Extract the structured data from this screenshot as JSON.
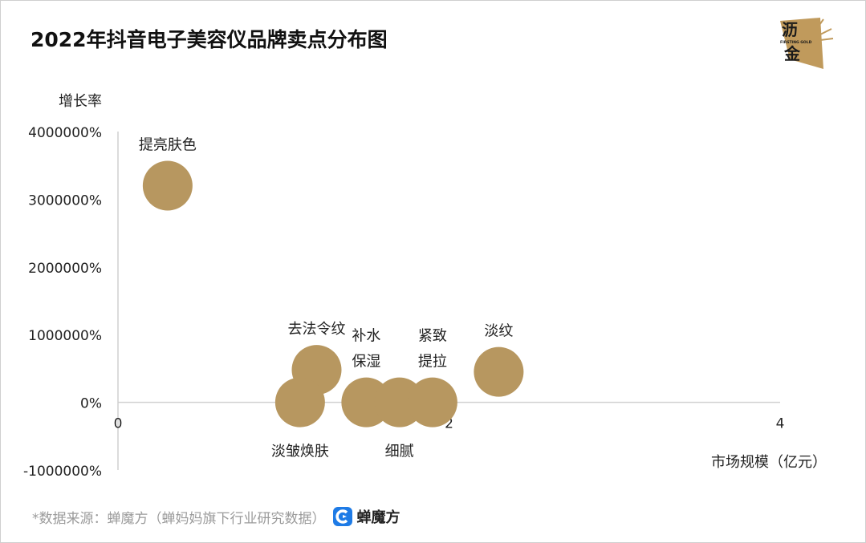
{
  "title": "2022年抖音电子美容仪品牌卖点分布图",
  "logo": {
    "line1": "沥",
    "tagline": "FIRSTING GOLD",
    "line2": "金",
    "color": "#c09a5c"
  },
  "source": {
    "text": "*数据来源：蝉魔方（蝉妈妈旗下行业研究数据）",
    "brand": "蝉魔方",
    "brand_color": "#1e7be6"
  },
  "chart_data": {
    "type": "scatter",
    "subtype": "bubble",
    "xlabel": "市场规模（亿元）",
    "ylabel": "增长率",
    "xlim": [
      0,
      4
    ],
    "ylim": [
      -1000000,
      4000000
    ],
    "x_ticks": [
      {
        "value": 0,
        "label": "0"
      },
      {
        "value": 2,
        "label": "2"
      },
      {
        "value": 4,
        "label": "4"
      }
    ],
    "y_ticks": [
      {
        "value": -1000000,
        "label": "-1000000%"
      },
      {
        "value": 0,
        "label": "0%"
      },
      {
        "value": 1000000,
        "label": "1000000%"
      },
      {
        "value": 2000000,
        "label": "2000000%"
      },
      {
        "value": 3000000,
        "label": "3000000%"
      },
      {
        "value": 4000000,
        "label": "4000000%"
      }
    ],
    "grid": false,
    "bubble_color": "#b79760",
    "points": [
      {
        "label": [
          "提亮肤色"
        ],
        "x": 0.3,
        "y": 3200000,
        "label_pos": "above"
      },
      {
        "label": [
          "去法令纹"
        ],
        "x": 1.2,
        "y": 480000,
        "label_pos": "above"
      },
      {
        "label": [
          "淡皱焕肤"
        ],
        "x": 1.1,
        "y": 0,
        "label_pos": "below"
      },
      {
        "label": [
          "补水",
          "保湿"
        ],
        "x": 1.5,
        "y": 0,
        "label_pos": "above"
      },
      {
        "label": [
          "细腻"
        ],
        "x": 1.7,
        "y": 0,
        "label_pos": "below"
      },
      {
        "label": [
          "紧致",
          "提拉"
        ],
        "x": 1.9,
        "y": 0,
        "label_pos": "above"
      },
      {
        "label": [
          "淡纹"
        ],
        "x": 2.3,
        "y": 450000,
        "label_pos": "above"
      }
    ]
  }
}
